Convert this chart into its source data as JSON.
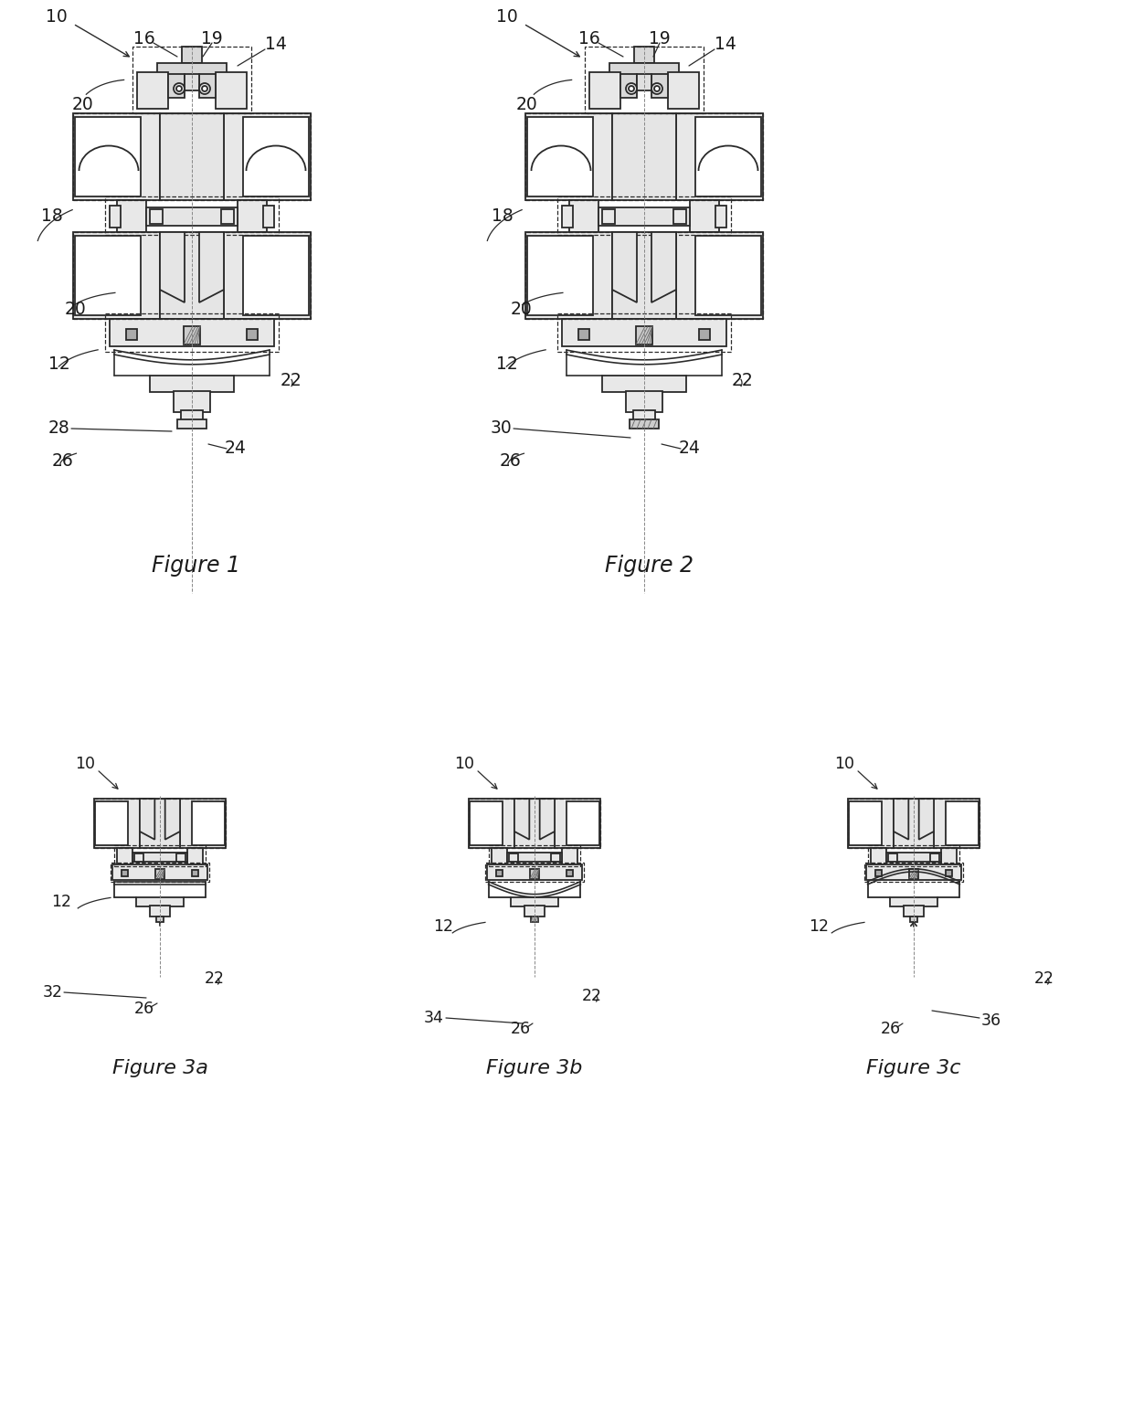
{
  "bg": "#ffffff",
  "lc": "#2a2a2a",
  "fc": "#e8e8e8",
  "fc2": "#d0d0d0",
  "fig1_caption": "Figure 1",
  "fig2_caption": "Figure 2",
  "fig3a_caption": "Figure 3a",
  "fig3b_caption": "Figure 3b",
  "fig3c_caption": "Figure 3c"
}
